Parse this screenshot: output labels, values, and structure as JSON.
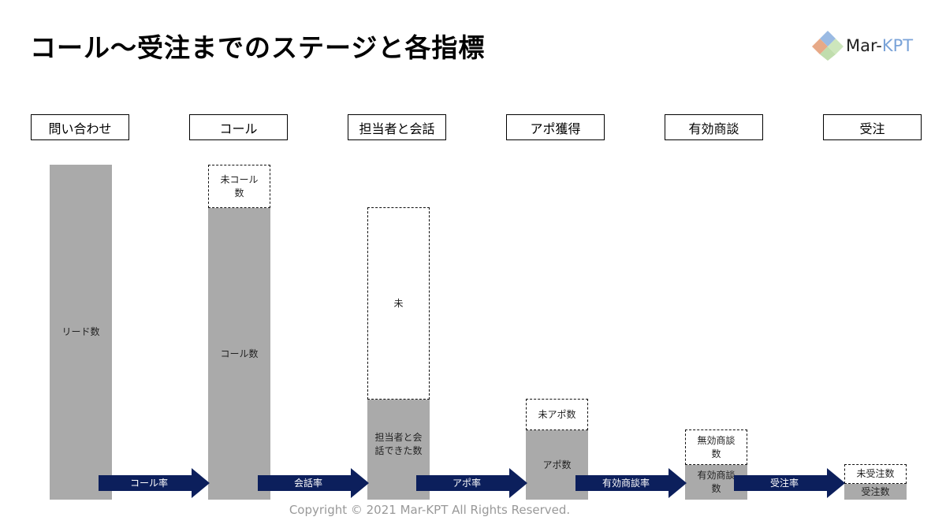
{
  "title": "コール〜受注までのステージと各指標",
  "logo": {
    "text_main": "Mar-",
    "text_accent": "KPT",
    "icon": "diamond-logo-icon"
  },
  "stages": [
    "問い合わせ",
    "コール",
    "担当者と会話",
    "アポ獲得",
    "有効商談",
    "受注"
  ],
  "bars": {
    "lead": "リード数",
    "call": "コール数",
    "uncalled": "未コール数",
    "talked": "担当者と会話できた数",
    "not_talked": "未",
    "appt": "アポ数",
    "no_appt": "未アポ数",
    "valid_deal": "有効商談数",
    "invalid_deal": "無効商談数",
    "won": "受注数",
    "not_won": "未受注数"
  },
  "arrows": [
    "コール率",
    "会話率",
    "アポ率",
    "有効商談率",
    "受注率"
  ],
  "colors": {
    "bar": "#aaaaaa",
    "arrow": "#0c1f5c",
    "footer": "#999999"
  },
  "footer": "Copyright © 2021 Mar-KPT All Rights Reserved."
}
